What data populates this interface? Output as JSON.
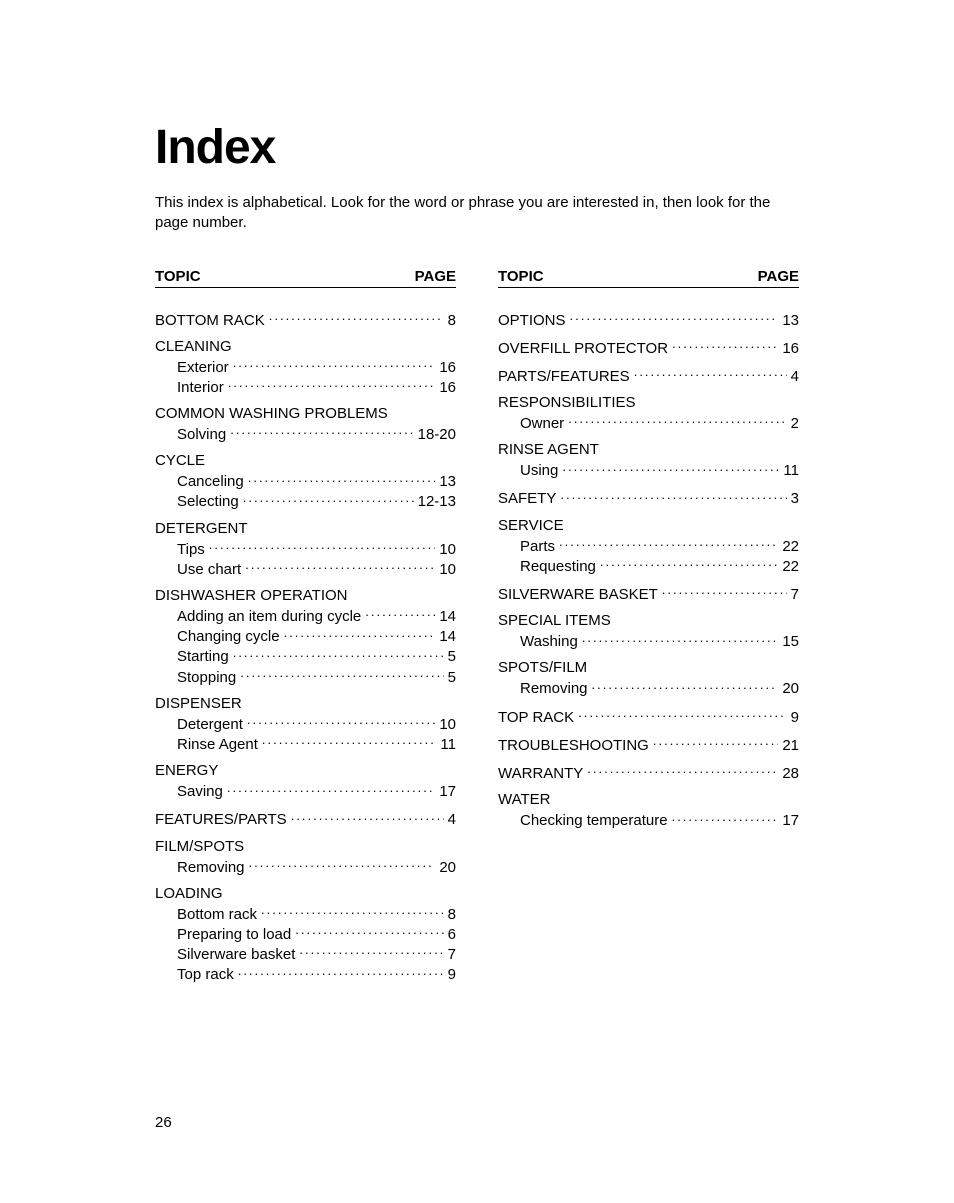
{
  "title": "Index",
  "intro": "This index is alphabetical. Look for the word or phrase you are interested in, then look for the page number.",
  "header": {
    "topic": "TOPIC",
    "page": "PAGE"
  },
  "page_number": "26",
  "columns": [
    {
      "sections": [
        {
          "head": null,
          "entries": [
            {
              "label": "BOTTOM RACK",
              "page": "8",
              "sub": false
            }
          ]
        },
        {
          "head": "CLEANING",
          "entries": [
            {
              "label": "Exterior",
              "page": "16",
              "sub": true
            },
            {
              "label": "Interior",
              "page": "16",
              "sub": true
            }
          ]
        },
        {
          "head": "COMMON WASHING PROBLEMS",
          "entries": [
            {
              "label": "Solving",
              "page": "18-20",
              "sub": true
            }
          ]
        },
        {
          "head": "CYCLE",
          "entries": [
            {
              "label": "Canceling",
              "page": "13",
              "sub": true
            },
            {
              "label": "Selecting",
              "page": "12-13",
              "sub": true
            }
          ]
        },
        {
          "head": "DETERGENT",
          "entries": [
            {
              "label": "Tips",
              "page": "10",
              "sub": true
            },
            {
              "label": "Use chart",
              "page": "10",
              "sub": true
            }
          ]
        },
        {
          "head": "DISHWASHER OPERATION",
          "entries": [
            {
              "label": "Adding an item during cycle",
              "page": "14",
              "sub": true
            },
            {
              "label": "Changing cycle",
              "page": "14",
              "sub": true
            },
            {
              "label": "Starting",
              "page": "5",
              "sub": true
            },
            {
              "label": "Stopping",
              "page": "5",
              "sub": true
            }
          ]
        },
        {
          "head": "DISPENSER",
          "entries": [
            {
              "label": "Detergent",
              "page": "10",
              "sub": true
            },
            {
              "label": "Rinse Agent",
              "page": "11",
              "sub": true
            }
          ]
        },
        {
          "head": "ENERGY",
          "entries": [
            {
              "label": "Saving",
              "page": "17",
              "sub": true
            }
          ]
        },
        {
          "head": null,
          "entries": [
            {
              "label": "FEATURES/PARTS",
              "page": "4",
              "sub": false
            }
          ]
        },
        {
          "head": "FILM/SPOTS",
          "entries": [
            {
              "label": "Removing",
              "page": "20",
              "sub": true
            }
          ]
        },
        {
          "head": "LOADING",
          "entries": [
            {
              "label": "Bottom rack",
              "page": "8",
              "sub": true
            },
            {
              "label": "Preparing to load",
              "page": "6",
              "sub": true
            },
            {
              "label": "Silverware basket",
              "page": "7",
              "sub": true
            },
            {
              "label": "Top rack",
              "page": "9",
              "sub": true
            }
          ]
        }
      ]
    },
    {
      "sections": [
        {
          "head": null,
          "entries": [
            {
              "label": "OPTIONS",
              "page": "13",
              "sub": false
            }
          ]
        },
        {
          "head": null,
          "entries": [
            {
              "label": "OVERFILL PROTECTOR",
              "page": "16",
              "sub": false
            }
          ]
        },
        {
          "head": null,
          "entries": [
            {
              "label": "PARTS/FEATURES",
              "page": "4",
              "sub": false
            }
          ]
        },
        {
          "head": "RESPONSIBILITIES",
          "entries": [
            {
              "label": "Owner",
              "page": "2",
              "sub": true
            }
          ]
        },
        {
          "head": "RINSE AGENT",
          "entries": [
            {
              "label": "Using",
              "page": "11",
              "sub": true
            }
          ]
        },
        {
          "head": null,
          "entries": [
            {
              "label": "SAFETY",
              "page": "3",
              "sub": false
            }
          ]
        },
        {
          "head": "SERVICE",
          "entries": [
            {
              "label": "Parts",
              "page": "22",
              "sub": true
            },
            {
              "label": "Requesting",
              "page": "22",
              "sub": true
            }
          ]
        },
        {
          "head": null,
          "entries": [
            {
              "label": "SILVERWARE BASKET",
              "page": "7",
              "sub": false
            }
          ]
        },
        {
          "head": "SPECIAL ITEMS",
          "entries": [
            {
              "label": "Washing",
              "page": "15",
              "sub": true
            }
          ]
        },
        {
          "head": "SPOTS/FILM",
          "entries": [
            {
              "label": "Removing",
              "page": "20",
              "sub": true
            }
          ]
        },
        {
          "head": null,
          "entries": [
            {
              "label": "TOP RACK",
              "page": "9",
              "sub": false
            }
          ]
        },
        {
          "head": null,
          "entries": [
            {
              "label": "TROUBLESHOOTING",
              "page": "21",
              "sub": false
            }
          ]
        },
        {
          "head": null,
          "entries": [
            {
              "label": "WARRANTY",
              "page": "28",
              "sub": false
            }
          ]
        },
        {
          "head": "WATER",
          "entries": [
            {
              "label": "Checking temperature",
              "page": "17",
              "sub": true
            }
          ]
        }
      ]
    }
  ]
}
